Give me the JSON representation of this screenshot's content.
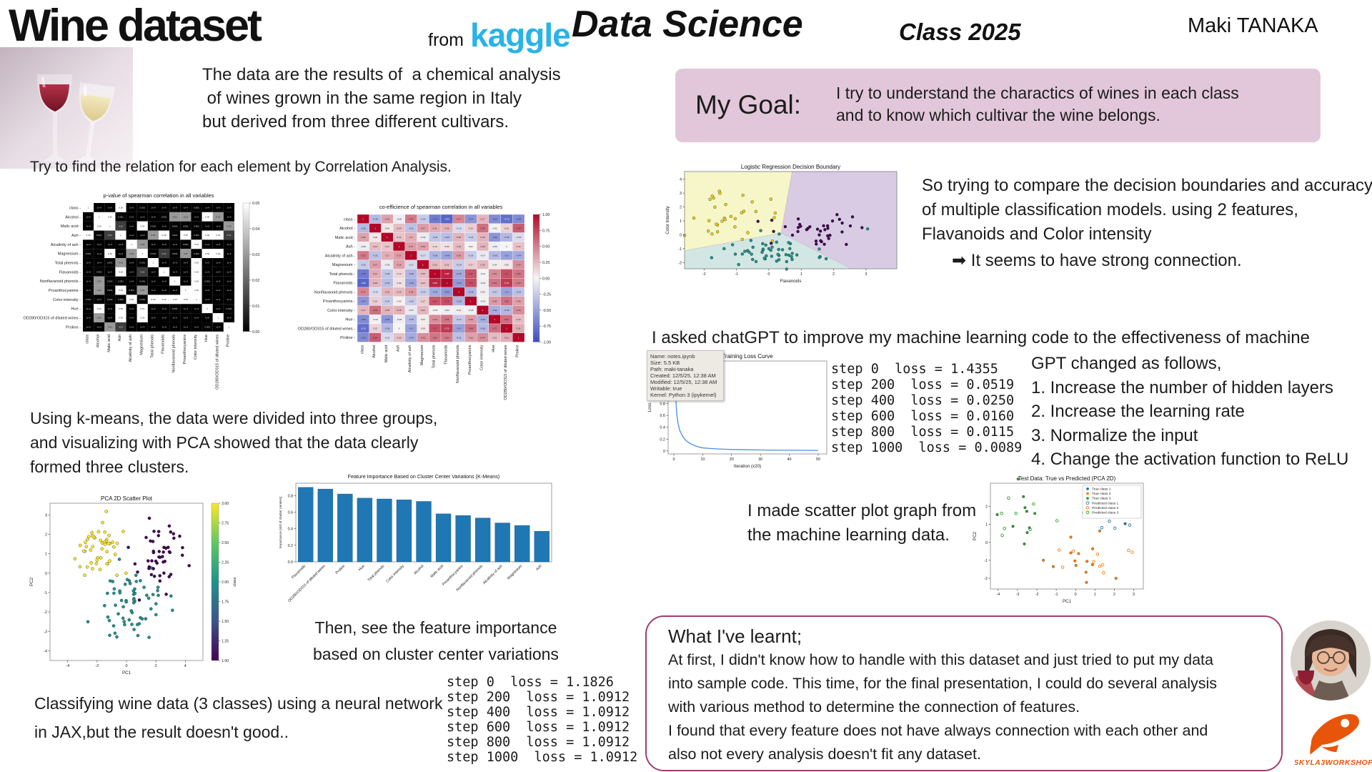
{
  "header": {
    "title": "Wine dataset",
    "from_label": "from",
    "kaggle": "kaggle",
    "kaggle_color": "#29b3e8",
    "course": "Data Science",
    "class_year": "Class 2025",
    "author": "Maki TANAKA",
    "description_lines": [
      "The data are the results of  a chemical analysis",
      " of wines grown in the same region in Italy",
      "but derived from three different cultivars."
    ]
  },
  "goal": {
    "label": "My Goal:",
    "bg": "#e2c7da",
    "lines": [
      "I try to understand the charactics of wines in each class",
      "and to know which cultivar the wine belongs."
    ]
  },
  "sections": {
    "correlation_intro": "Try to find the relation for each element by Correlation Analysis.",
    "kmeans_lines": [
      "Using k-means, the data were divided into three groups,",
      "and visualizing with PCA showed that the data clearly",
      "formed three clusters."
    ],
    "then_lines": [
      "Then, see the feature importance",
      "based on cluster center variations"
    ],
    "classify_lines": [
      "Classifying wine data (3 classes) using a neural network",
      "in JAX,but the result doesn't good.."
    ],
    "compare_lines": [
      "So trying to compare the decision boundaries and accuracy",
      "of multiple classification models. using 2 features,",
      "Flavanoids and Color intensity"
    ],
    "arrow_note": "It seems to have strong connection.",
    "chatgpt_line": "I asked chatGPT to improve my machine learning code to the effectiveness  of machine learning",
    "gpt_changes": [
      "GPT changed as follows,",
      "1. Increase the number of hidden layers",
      "2. Increase the learning rate",
      "3. Normalize the input",
      "4. Change the activation function to ReLU"
    ],
    "scatter_note_lines": [
      "I made scatter plot graph from",
      "the machine learning data."
    ],
    "learnt": {
      "title": "What I've learnt;",
      "lines": [
        "At first, I didn't know how to handle with this dataset and just tried to put my data",
        "into sample code. This time, for the final presentation, I could do several analysis",
        "with various method to determine the connection of features.",
        "I found that every feature does not have always connection with each other and",
        "also not every analysis doesn't fit any dataset."
      ]
    }
  },
  "losses_jax": [
    "step 0  loss = 1.1826",
    "step 200  loss = 1.0912",
    "step 400  loss = 1.0912",
    "step 600  loss = 1.0912",
    "step 800  loss = 1.0912",
    "step 1000  loss = 1.0912"
  ],
  "losses_gpt": [
    "step 0  loss = 1.4355",
    "step 200  loss = 0.0519",
    "step 400  loss = 0.0250",
    "step 600  loss = 0.0160",
    "step 800  loss = 0.0115",
    "step 1000  loss = 0.0089"
  ],
  "tooltip": {
    "lines": [
      "Name: notes.ipynb",
      "Size: 5.5 KB",
      "Path: maki-tanaka",
      "Created: 12/5/25, 12:38 AM",
      "Modified: 12/5/25, 12:38 AM",
      "Writable: true",
      "Kernel: Python 3 (ipykernel)"
    ]
  },
  "logo": {
    "text": "SKYLA3WORKSHOP",
    "color": "#e8550a"
  },
  "chart_data": [
    {
      "id": "p_heatmap",
      "type": "heatmap",
      "title": "p-value of spearman correlation in all variables",
      "mode": "pvalue",
      "derived_from": "spearman_r",
      "colorbar_ticks": [
        0.05,
        0.04,
        0.03,
        0.02,
        0.01,
        0.0
      ],
      "labels": [
        "class",
        "Alcohol",
        "Malic acid",
        "Ash",
        "Alcalinity of ash",
        "Magnesium",
        "Total phenols",
        "Flavanoids",
        "Nonflavanoid phenols",
        "Proanthocyanins",
        "Color intensity",
        "Hue",
        "OD280/OD315 of diluted wines",
        "Proline"
      ]
    },
    {
      "id": "r_heatmap",
      "type": "heatmap",
      "title": "co-efficience of spearman correlation in all variables",
      "mode": "coolwarm",
      "colorbar_ticks": [
        1.0,
        0.75,
        0.5,
        0.25,
        0.0,
        -0.25,
        -0.5,
        -0.75,
        -1.0
      ],
      "labels": [
        "class",
        "Alcohol",
        "Malic acid",
        "Ash",
        "Alcalinity of ash",
        "Magnesium",
        "Total phenols",
        "Flavanoids",
        "Nonflavanoid phenols",
        "Proanthocyanins",
        "Color intensity",
        "Hue",
        "OD280/OD315 of diluted wines",
        "Proline"
      ],
      "matrix": [
        [
          1.0,
          -0.35,
          0.35,
          -0.05,
          0.52,
          -0.25,
          -0.72,
          -0.85,
          0.47,
          -0.57,
          0.27,
          -0.62,
          -0.79,
          -0.63
        ],
        [
          -0.35,
          1.0,
          0.06,
          0.24,
          -0.31,
          0.37,
          0.31,
          0.28,
          -0.16,
          0.16,
          0.56,
          -0.02,
          0.15,
          0.64
        ],
        [
          0.35,
          0.06,
          1.0,
          0.21,
          0.3,
          -0.06,
          -0.28,
          -0.33,
          0.28,
          -0.24,
          0.28,
          -0.56,
          -0.36,
          -0.15
        ],
        [
          -0.05,
          0.24,
          0.21,
          1.0,
          0.37,
          0.36,
          0.13,
          0.09,
          0.25,
          0.02,
          0.28,
          -0.05,
          0.0,
          0.22
        ],
        [
          0.52,
          -0.31,
          0.3,
          0.37,
          1.0,
          -0.17,
          -0.38,
          -0.48,
          0.38,
          -0.25,
          -0.07,
          -0.35,
          -0.5,
          -0.44
        ],
        [
          -0.25,
          0.37,
          -0.06,
          0.36,
          -0.17,
          1.0,
          0.25,
          0.23,
          -0.24,
          0.17,
          0.26,
          0.04,
          0.06,
          0.43
        ],
        [
          -0.72,
          0.31,
          -0.28,
          0.13,
          -0.38,
          0.25,
          1.0,
          0.88,
          -0.45,
          0.67,
          -0.01,
          0.44,
          0.7,
          0.54
        ],
        [
          -0.85,
          0.28,
          -0.33,
          0.09,
          -0.48,
          0.23,
          0.88,
          1.0,
          -0.54,
          0.71,
          -0.04,
          0.54,
          0.79,
          0.52
        ],
        [
          0.47,
          -0.16,
          0.28,
          0.25,
          0.38,
          -0.24,
          -0.45,
          -0.54,
          1.0,
          -0.38,
          0.04,
          -0.27,
          -0.5,
          -0.31
        ],
        [
          -0.57,
          0.16,
          -0.24,
          0.02,
          -0.25,
          0.17,
          0.67,
          0.71,
          -0.38,
          1.0,
          -0.03,
          0.38,
          0.56,
          0.36
        ],
        [
          0.27,
          0.56,
          0.28,
          0.28,
          -0.07,
          0.26,
          -0.01,
          -0.04,
          0.04,
          -0.03,
          1.0,
          -0.42,
          -0.36,
          0.44
        ],
        [
          -0.62,
          -0.02,
          -0.56,
          -0.05,
          -0.35,
          0.04,
          0.44,
          0.54,
          -0.27,
          0.38,
          -0.42,
          1.0,
          0.57,
          0.24
        ],
        [
          -0.79,
          0.15,
          -0.36,
          0.0,
          -0.5,
          0.06,
          0.7,
          0.79,
          -0.5,
          0.56,
          -0.36,
          0.57,
          1.0,
          0.31
        ],
        [
          -0.63,
          0.64,
          -0.15,
          0.22,
          -0.44,
          0.43,
          0.54,
          0.52,
          -0.31,
          0.36,
          0.44,
          0.24,
          0.31,
          1.0
        ]
      ]
    },
    {
      "id": "decision",
      "type": "scatter",
      "title": "Logistic Regression Decision Boundary",
      "xlabel": "Flavanoids",
      "ylabel": "Color intensity",
      "xlim": [
        -2.6,
        3.95
      ],
      "ylim": [
        -2.45,
        4.55
      ],
      "xticks": [
        -2,
        -1,
        0,
        1,
        2,
        3
      ],
      "yticks": [
        -2,
        -1,
        0,
        1,
        2,
        3,
        4
      ],
      "seed": 7,
      "regions": [
        {
          "color": "#f6f6c9",
          "pts": [
            [
              -2.6,
              4.55
            ],
            [
              0.72,
              4.55
            ],
            [
              0.38,
              0.12
            ],
            [
              -2.6,
              -1.15
            ]
          ]
        },
        {
          "color": "#d9cbe3",
          "pts": [
            [
              0.72,
              4.55
            ],
            [
              3.95,
              4.55
            ],
            [
              3.95,
              -2.45
            ],
            [
              2.55,
              -2.45
            ],
            [
              0.38,
              0.12
            ]
          ]
        },
        {
          "color": "#d2e7e3",
          "pts": [
            [
              -2.6,
              -1.15
            ],
            [
              0.38,
              0.12
            ],
            [
              2.55,
              -2.45
            ],
            [
              -2.6,
              -2.45
            ]
          ]
        }
      ],
      "clusters": [
        {
          "color": "#e6d41f",
          "n": 32,
          "cx": -1.3,
          "cy": 1.1,
          "sx": 0.62,
          "sy": 1.05
        },
        {
          "color": "#440154",
          "n": 38,
          "cx": 1.35,
          "cy": 0.35,
          "sx": 0.62,
          "sy": 0.52
        },
        {
          "color": "#21918c",
          "n": 48,
          "cx": 0.1,
          "cy": -1.3,
          "sx": 0.85,
          "sy": 0.42
        }
      ],
      "extras": [
        {
          "color": "#21918c",
          "x": 3.05,
          "y": 0.42
        },
        {
          "color": "#21918c",
          "x": 0.32,
          "y": 0.05
        },
        {
          "color": "#21918c",
          "x": -0.25,
          "y": 0.3
        }
      ]
    },
    {
      "id": "loss_curve",
      "type": "line",
      "title": "Training Loss Curve",
      "xlabel": "Iteration (x20)",
      "ylabel": "Loss",
      "color": "#4a90d9",
      "xlim": [
        -2,
        53
      ],
      "ylim": [
        -0.05,
        1.52
      ],
      "xticks": [
        0,
        10,
        20,
        30,
        40,
        50
      ],
      "yticks": [
        0.0,
        0.2,
        0.4,
        0.6,
        0.8,
        1.0
      ],
      "points": [
        [
          0,
          1.4355
        ],
        [
          0.3,
          1.15
        ],
        [
          0.6,
          0.92
        ],
        [
          1,
          0.62
        ],
        [
          1.5,
          0.45
        ],
        [
          2,
          0.35
        ],
        [
          3,
          0.25
        ],
        [
          4,
          0.185
        ],
        [
          5,
          0.145
        ],
        [
          6,
          0.115
        ],
        [
          8,
          0.075
        ],
        [
          10,
          0.0519
        ],
        [
          12,
          0.044
        ],
        [
          15,
          0.035
        ],
        [
          20,
          0.025
        ],
        [
          25,
          0.02
        ],
        [
          30,
          0.016
        ],
        [
          35,
          0.013
        ],
        [
          40,
          0.0115
        ],
        [
          45,
          0.01
        ],
        [
          50,
          0.0089
        ]
      ]
    },
    {
      "id": "pca",
      "type": "scatter",
      "title": "PCA 2D Scatter Plot",
      "xlabel": "PC1",
      "ylabel": "PC2",
      "xlim": [
        -5.2,
        5.2
      ],
      "ylim": [
        -4.5,
        3.6
      ],
      "xticks": [
        -4,
        -2,
        0,
        2,
        4
      ],
      "yticks": [
        -4,
        -3,
        -2,
        -1,
        0,
        1,
        2,
        3
      ],
      "seed": 11,
      "colorbar": {
        "label": "class",
        "ticks": [
          3.0,
          2.75,
          2.5,
          2.25,
          2.0,
          1.75,
          1.5,
          1.25,
          1.0
        ]
      },
      "clusters": [
        {
          "color": "#fde725",
          "n": 50,
          "cx": -1.7,
          "cy": 1.6,
          "sx": 0.85,
          "sy": 0.85
        },
        {
          "color": "#21918c",
          "n": 65,
          "cx": 0.4,
          "cy": -1.7,
          "sx": 1.1,
          "sy": 0.95
        },
        {
          "color": "#440154",
          "n": 48,
          "cx": 2.3,
          "cy": 0.8,
          "sx": 0.85,
          "sy": 0.8
        }
      ],
      "extras": []
    },
    {
      "id": "importance",
      "type": "bar",
      "title": "Feature Importance Based on Cluster Center Variations (K-Means)",
      "ylabel": "Importance (std of cluster centers)",
      "color": "#1f77b4",
      "ylim": [
        0,
        0.95
      ],
      "yticks": [
        0.0,
        0.2,
        0.4,
        0.6,
        0.8
      ],
      "categories": [
        "Flavanoids",
        "OD280/OD315 of diluted wines",
        "Proline",
        "Hue",
        "Total phenols",
        "Color intensity",
        "Alcohol",
        "Malic acid",
        "Proanthocyanins",
        "Nonflavanoid phenols",
        "Alcalinity of ash",
        "Magnesium",
        "Ash"
      ],
      "values": [
        0.9,
        0.88,
        0.82,
        0.77,
        0.76,
        0.75,
        0.73,
        0.58,
        0.56,
        0.53,
        0.47,
        0.44,
        0.37
      ]
    },
    {
      "id": "test",
      "type": "scatter",
      "title": "Test Data: True vs Predicted (PCA 2D)",
      "xlabel": "PC1",
      "ylabel": "PC2",
      "xlim": [
        -4.4,
        3.5
      ],
      "ylim": [
        -2.6,
        3.3
      ],
      "xticks": [
        -4,
        -3,
        -2,
        -1,
        0,
        1,
        2,
        3
      ],
      "yticks": [
        -2,
        -1,
        0,
        1,
        2
      ],
      "seed": 23,
      "legend": {
        "items": [
          {
            "label": "True class 1",
            "color": "#1f77b4",
            "open": false
          },
          {
            "label": "True class 2",
            "color": "#ff7f0e",
            "open": false
          },
          {
            "label": "True class 3",
            "color": "#2ca02c",
            "open": false
          },
          {
            "label": "Predicted class 1",
            "color": "#1f77b4",
            "open": true
          },
          {
            "label": "Predicted class 2",
            "color": "#ff7f0e",
            "open": true
          },
          {
            "label": "Predicted class 3",
            "color": "#2ca02c",
            "open": true
          }
        ]
      },
      "clusters": [
        {
          "color": "#2ca02c",
          "n": 10,
          "cx": -2.7,
          "cy": 1.3,
          "sx": 0.7,
          "sy": 0.8
        },
        {
          "color": "#1f77b4",
          "n": 10,
          "cx": 1.6,
          "cy": 1.8,
          "sx": 0.9,
          "sy": 0.6
        },
        {
          "color": "#ff7f0e",
          "n": 14,
          "cx": 0.4,
          "cy": -1.0,
          "sx": 1.0,
          "sy": 0.6
        },
        {
          "color": "#2ca02c",
          "n": 8,
          "cx": -2.6,
          "cy": 1.2,
          "sx": 0.7,
          "sy": 0.8,
          "open": true
        },
        {
          "color": "#1f77b4",
          "n": 8,
          "cx": 1.7,
          "cy": 1.7,
          "sx": 0.9,
          "sy": 0.6,
          "open": true
        },
        {
          "color": "#ff7f0e",
          "n": 10,
          "cx": 0.5,
          "cy": -1.1,
          "sx": 1.0,
          "sy": 0.6,
          "open": true
        }
      ],
      "extras": []
    }
  ]
}
